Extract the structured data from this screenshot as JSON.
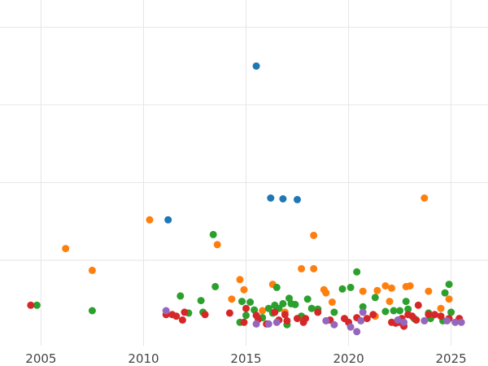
{
  "chart_data": {
    "type": "scatter",
    "title": "",
    "xlabel": "",
    "ylabel": "",
    "xlim": [
      2003.0,
      2026.8
    ],
    "ylim": [
      -0.1,
      4.35
    ],
    "grid": true,
    "legend": "none",
    "x_ticks": [
      {
        "value": 2005,
        "label": "2005"
      },
      {
        "value": 2010,
        "label": "2010"
      },
      {
        "value": 2015,
        "label": "2015"
      },
      {
        "value": 2020,
        "label": "2020"
      },
      {
        "value": 2025,
        "label": "2025"
      }
    ],
    "y_grid": [
      1,
      2,
      3,
      4
    ],
    "series": [
      {
        "color": "#1f77b4",
        "points": [
          [
            2015.5,
            3.5
          ],
          [
            2011.2,
            1.52
          ],
          [
            2016.2,
            1.8
          ],
          [
            2016.8,
            1.79
          ],
          [
            2017.5,
            1.78
          ]
        ]
      },
      {
        "color": "#ff7f0e",
        "points": [
          [
            2006.2,
            1.15
          ],
          [
            2007.5,
            0.87
          ],
          [
            2010.3,
            1.52
          ],
          [
            2013.6,
            1.2
          ],
          [
            2014.3,
            0.5
          ],
          [
            2014.7,
            0.75
          ],
          [
            2014.9,
            0.62
          ],
          [
            2015.8,
            0.35
          ],
          [
            2016.3,
            0.69
          ],
          [
            2016.9,
            0.33
          ],
          [
            2017.7,
            0.89
          ],
          [
            2018.3,
            1.32
          ],
          [
            2018.3,
            0.89
          ],
          [
            2018.8,
            0.62
          ],
          [
            2018.9,
            0.58
          ],
          [
            2019.2,
            0.46
          ],
          [
            2020.7,
            0.6
          ],
          [
            2021.3,
            0.28
          ],
          [
            2021.4,
            0.61
          ],
          [
            2021.8,
            0.67
          ],
          [
            2022.0,
            0.47
          ],
          [
            2022.1,
            0.64
          ],
          [
            2022.8,
            0.66
          ],
          [
            2023.0,
            0.67
          ],
          [
            2023.7,
            1.8
          ],
          [
            2023.9,
            0.6
          ],
          [
            2024.5,
            0.38
          ],
          [
            2024.9,
            0.5
          ]
        ]
      },
      {
        "color": "#2ca02c",
        "points": [
          [
            2004.8,
            0.42
          ],
          [
            2007.5,
            0.35
          ],
          [
            2011.8,
            0.54
          ],
          [
            2012.2,
            0.32
          ],
          [
            2012.8,
            0.48
          ],
          [
            2012.9,
            0.33
          ],
          [
            2013.4,
            1.33
          ],
          [
            2013.5,
            0.66
          ],
          [
            2014.7,
            0.2
          ],
          [
            2014.8,
            0.47
          ],
          [
            2015.0,
            0.29
          ],
          [
            2015.2,
            0.46
          ],
          [
            2015.4,
            0.36
          ],
          [
            2015.8,
            0.26
          ],
          [
            2016.1,
            0.38
          ],
          [
            2016.3,
            0.32
          ],
          [
            2016.4,
            0.42
          ],
          [
            2016.5,
            0.65
          ],
          [
            2016.6,
            0.38
          ],
          [
            2016.8,
            0.44
          ],
          [
            2017.0,
            0.17
          ],
          [
            2017.1,
            0.51
          ],
          [
            2017.2,
            0.44
          ],
          [
            2017.4,
            0.43
          ],
          [
            2017.7,
            0.28
          ],
          [
            2018.0,
            0.5
          ],
          [
            2018.2,
            0.38
          ],
          [
            2018.5,
            0.37
          ],
          [
            2019.3,
            0.33
          ],
          [
            2019.7,
            0.63
          ],
          [
            2020.1,
            0.65
          ],
          [
            2020.4,
            0.85
          ],
          [
            2020.7,
            0.4
          ],
          [
            2021.3,
            0.52
          ],
          [
            2021.8,
            0.34
          ],
          [
            2022.2,
            0.35
          ],
          [
            2022.5,
            0.35
          ],
          [
            2022.8,
            0.47
          ],
          [
            2022.9,
            0.37
          ],
          [
            2023.2,
            0.25
          ],
          [
            2023.9,
            0.32
          ],
          [
            2024.0,
            0.25
          ],
          [
            2024.6,
            0.22
          ],
          [
            2024.7,
            0.58
          ],
          [
            2024.9,
            0.69
          ],
          [
            2025.0,
            0.33
          ]
        ]
      },
      {
        "color": "#d62728",
        "points": [
          [
            2004.5,
            0.42
          ],
          [
            2011.1,
            0.3
          ],
          [
            2011.4,
            0.3
          ],
          [
            2011.6,
            0.28
          ],
          [
            2011.9,
            0.23
          ],
          [
            2012.0,
            0.33
          ],
          [
            2013.0,
            0.3
          ],
          [
            2014.2,
            0.32
          ],
          [
            2014.9,
            0.2
          ],
          [
            2015.0,
            0.38
          ],
          [
            2015.5,
            0.29
          ],
          [
            2015.6,
            0.24
          ],
          [
            2016.0,
            0.18
          ],
          [
            2016.4,
            0.33
          ],
          [
            2016.6,
            0.23
          ],
          [
            2016.9,
            0.3
          ],
          [
            2017.0,
            0.22
          ],
          [
            2017.5,
            0.25
          ],
          [
            2017.8,
            0.2
          ],
          [
            2017.9,
            0.25
          ],
          [
            2018.5,
            0.33
          ],
          [
            2019.1,
            0.23
          ],
          [
            2019.8,
            0.25
          ],
          [
            2020.0,
            0.2
          ],
          [
            2020.4,
            0.26
          ],
          [
            2020.9,
            0.25
          ],
          [
            2021.2,
            0.3
          ],
          [
            2022.1,
            0.2
          ],
          [
            2022.3,
            0.19
          ],
          [
            2022.5,
            0.2
          ],
          [
            2022.6,
            0.25
          ],
          [
            2022.7,
            0.15
          ],
          [
            2022.9,
            0.3
          ],
          [
            2023.1,
            0.28
          ],
          [
            2023.3,
            0.23
          ],
          [
            2023.4,
            0.42
          ],
          [
            2023.9,
            0.3
          ],
          [
            2024.2,
            0.3
          ],
          [
            2024.5,
            0.28
          ],
          [
            2024.9,
            0.25
          ],
          [
            2025.4,
            0.25
          ]
        ]
      },
      {
        "color": "#9467bd",
        "points": [
          [
            2011.1,
            0.35
          ],
          [
            2015.5,
            0.18
          ],
          [
            2016.1,
            0.18
          ],
          [
            2016.5,
            0.2
          ],
          [
            2018.9,
            0.22
          ],
          [
            2019.3,
            0.17
          ],
          [
            2020.1,
            0.14
          ],
          [
            2020.4,
            0.08
          ],
          [
            2020.6,
            0.22
          ],
          [
            2020.7,
            0.33
          ],
          [
            2022.4,
            0.23
          ],
          [
            2022.7,
            0.2
          ],
          [
            2023.7,
            0.22
          ],
          [
            2024.8,
            0.22
          ],
          [
            2025.2,
            0.2
          ],
          [
            2025.5,
            0.2
          ]
        ]
      }
    ]
  }
}
